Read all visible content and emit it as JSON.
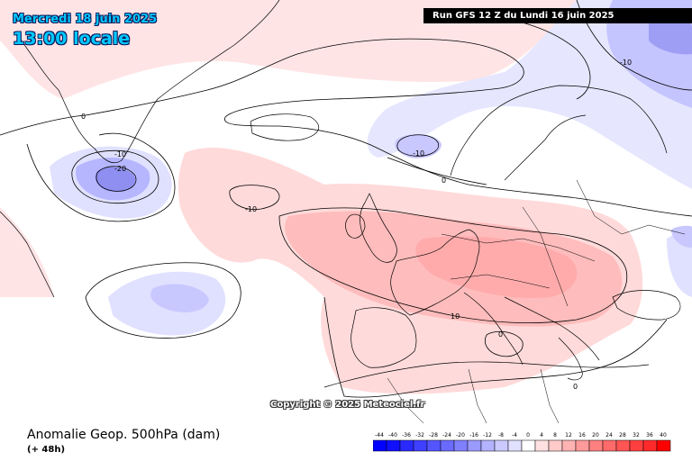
{
  "header": {
    "date": "Mercredi 18 juin 2025",
    "time": "13:00 locale",
    "run": "Run GFS 12 Z du Lundi 16 juin 2025"
  },
  "footer": {
    "variable": "Anomalie Geop. 500hPa (dam)",
    "lead": "(+ 48h)",
    "copyright": "Copyright © 2025 Meteociel.fr"
  },
  "contour_labels": [
    {
      "id": "greenland-zero",
      "text": "0"
    },
    {
      "id": "greenland-m10",
      "text": "-10"
    },
    {
      "id": "greenland-m20",
      "text": "-20"
    },
    {
      "id": "atlantic-m10",
      "text": "-10"
    },
    {
      "id": "norway-m10",
      "text": "-10"
    },
    {
      "id": "scandinavia-m10",
      "text": "-10"
    },
    {
      "id": "northsea-zero",
      "text": "0"
    },
    {
      "id": "alps-10",
      "text": "10"
    },
    {
      "id": "mediterranean-zero",
      "text": "0"
    },
    {
      "id": "africa-zero",
      "text": "0"
    }
  ],
  "scale": {
    "values": [
      "-44",
      "-40",
      "-36",
      "-32",
      "-28",
      "-24",
      "-20",
      "-16",
      "-12",
      "-8",
      "-4",
      "0",
      "4",
      "8",
      "12",
      "16",
      "20",
      "24",
      "28",
      "32",
      "36",
      "40"
    ],
    "colors": [
      "#0000ff",
      "#1010ff",
      "#2a2aff",
      "#3f3fff",
      "#5555ff",
      "#6a6aff",
      "#8080ff",
      "#9a9aff",
      "#b3b3ff",
      "#cacaff",
      "#e0e0ff",
      "#ffffff",
      "#ffe0e0",
      "#ffcaca",
      "#ffb3b3",
      "#ff9a9a",
      "#ff8080",
      "#ff6a6a",
      "#ff5555",
      "#ff3f3f",
      "#ff2a2a",
      "#ff0000"
    ]
  }
}
